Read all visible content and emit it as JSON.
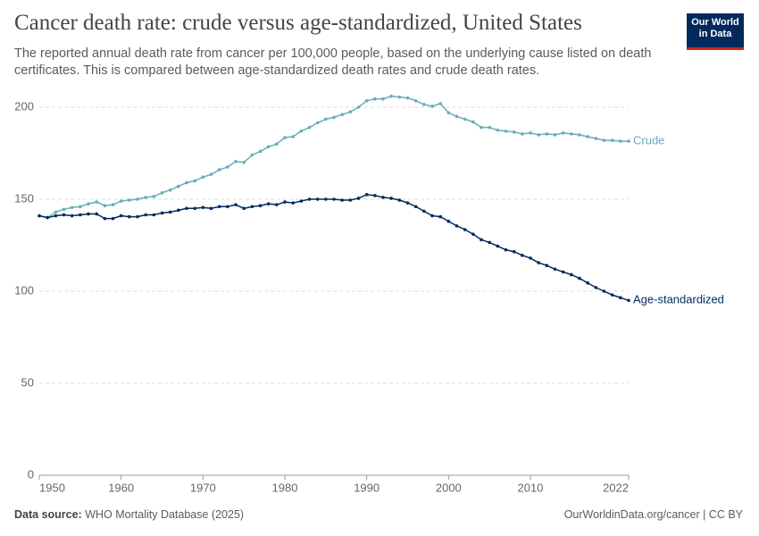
{
  "chart_data": {
    "type": "line",
    "title": "Cancer death rate: crude versus age-standardized, United States",
    "subtitle": "The reported annual death rate from cancer per 100,000 people, based on the underlying cause listed on death certificates. This is compared between age-standardized death rates and crude death rates.",
    "logo": [
      "Our World",
      "in Data"
    ],
    "source_label": "Data source:",
    "source": "WHO Mortality Database (2025)",
    "credit": "OurWorldinData.org/cancer | CC BY",
    "x": [
      1950,
      1951,
      1952,
      1953,
      1954,
      1955,
      1956,
      1957,
      1958,
      1959,
      1960,
      1961,
      1962,
      1963,
      1964,
      1965,
      1966,
      1967,
      1968,
      1969,
      1970,
      1971,
      1972,
      1973,
      1974,
      1975,
      1976,
      1977,
      1978,
      1979,
      1980,
      1981,
      1982,
      1983,
      1984,
      1985,
      1986,
      1987,
      1988,
      1989,
      1990,
      1991,
      1992,
      1993,
      1994,
      1995,
      1996,
      1997,
      1998,
      1999,
      2000,
      2001,
      2002,
      2003,
      2004,
      2005,
      2006,
      2007,
      2008,
      2009,
      2010,
      2011,
      2012,
      2013,
      2014,
      2015,
      2016,
      2017,
      2018,
      2019,
      2020,
      2021,
      2022
    ],
    "series": [
      {
        "name": "Crude",
        "color": "#6aacb8",
        "values": [
          141,
          140,
          143,
          144.5,
          145.5,
          146,
          147.5,
          148.5,
          146.5,
          147,
          149,
          149.5,
          150,
          151,
          151.5,
          153.5,
          155,
          157,
          159,
          160,
          162,
          163.5,
          166,
          167.5,
          170.5,
          170,
          174,
          176,
          178.5,
          180,
          183.5,
          184,
          187,
          189,
          191.5,
          193.5,
          194.5,
          196,
          197.5,
          200,
          203.5,
          204.5,
          204.5,
          206,
          205.5,
          205,
          203.5,
          201.5,
          200.5,
          202,
          197,
          195,
          193.5,
          192,
          189,
          189,
          187.5,
          187,
          186.5,
          185.5,
          186,
          185,
          185.5,
          185,
          186,
          185.5,
          185,
          184,
          183,
          182,
          182,
          181.5,
          181.5
        ]
      },
      {
        "name": "Age-standardized",
        "color": "#002a5c",
        "values": [
          141,
          140,
          141,
          141.5,
          141,
          141.5,
          142,
          142,
          139.5,
          139.5,
          141,
          140.5,
          140.5,
          141.5,
          141.5,
          142.5,
          143,
          144,
          145,
          145,
          145.5,
          145,
          146,
          146,
          147,
          145,
          146,
          146.5,
          147.5,
          147,
          148.5,
          148,
          149,
          150,
          150,
          150,
          150,
          149.5,
          149.5,
          150.5,
          152.5,
          152,
          151,
          150.5,
          149.5,
          148,
          146,
          143.5,
          141,
          140.5,
          138,
          135.5,
          133.5,
          131,
          128,
          126.5,
          124.5,
          122.5,
          121.5,
          119.5,
          118,
          115.5,
          114,
          112,
          110.5,
          109,
          107,
          104.5,
          102,
          100,
          98,
          96.5,
          95
        ]
      }
    ],
    "xlim": [
      1950,
      2022
    ],
    "xticks": [
      1950,
      1960,
      1970,
      1980,
      1990,
      2000,
      2010,
      2022
    ],
    "ylim": [
      0,
      200
    ],
    "yticks": [
      0,
      50,
      100,
      150,
      200
    ],
    "grid": true
  }
}
